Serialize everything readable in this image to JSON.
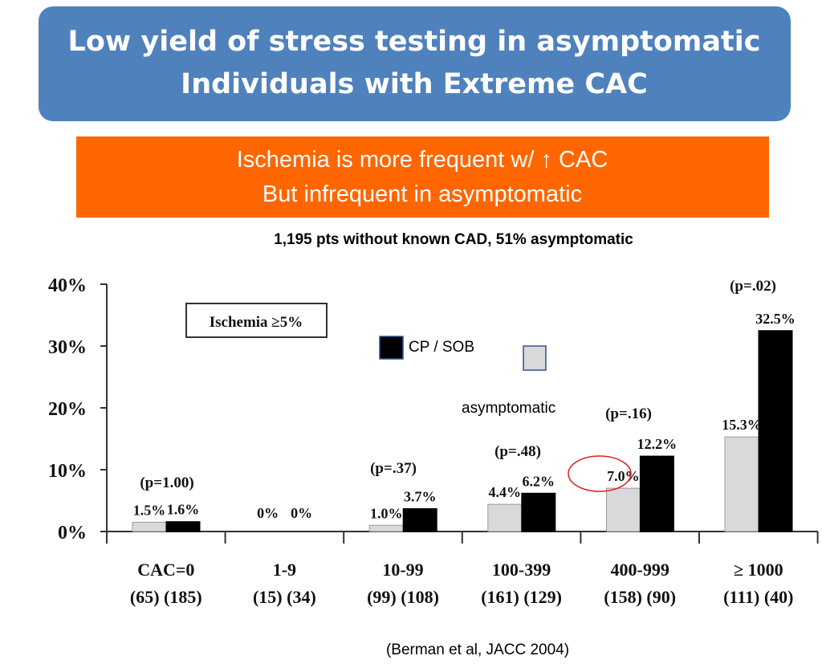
{
  "title_lines": [
    "Low yield of stress testing in asymptomatic",
    "Individuals with Extreme CAC"
  ],
  "banner_lines": [
    "Ischemia is more frequent w/ ↑ CAC",
    "But infrequent in asymptomatic"
  ],
  "subtitle": "1,195 pts without known CAD, 51% asymptomatic",
  "citation": "(Berman et al, JACC 2004)",
  "colors": {
    "title_bg": "#4f81bd",
    "banner_bg": "#ff6600",
    "cp_sob": "#000000",
    "asymptomatic": "#d9d9d9",
    "highlight_circle": "#e02020"
  },
  "chart_data": {
    "type": "bar",
    "title": "Ischemia ≥5%",
    "ylim": [
      0,
      40
    ],
    "yticks": [
      "0%",
      "10%",
      "20%",
      "30%",
      "40%"
    ],
    "categories": [
      "CAC=0",
      "1-9",
      "10-99",
      "100-399",
      "400-999",
      "≥ 1000"
    ],
    "counts": [
      "(65) (185)",
      "(15) (34)",
      "(99) (108)",
      "(161) (129)",
      "(158) (90)",
      "(111) (40)"
    ],
    "p_values": [
      "(p=1.00)",
      "",
      "(p=.37)",
      "(p=.48)",
      "(p=.16)",
      "(p=.02)"
    ],
    "legend": [
      "CP / SOB",
      "asymptomatic"
    ],
    "series": [
      {
        "name": "asymptomatic",
        "values": [
          1.5,
          0,
          1.0,
          4.4,
          7.0,
          15.3
        ],
        "labels": [
          "1.5%",
          "0%",
          "1.0%",
          "4.4%",
          "7.0%",
          "15.3%"
        ]
      },
      {
        "name": "CP / SOB",
        "values": [
          1.6,
          0,
          3.7,
          6.2,
          12.2,
          32.5
        ],
        "labels": [
          "1.6%",
          "0%",
          "3.7%",
          "6.2%",
          "12.2%",
          "32.5%"
        ]
      }
    ],
    "highlighted": "7.0%"
  }
}
